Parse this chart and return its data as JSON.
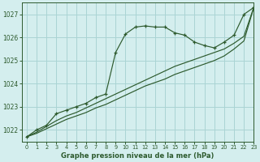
{
  "title": "Graphe pression niveau de la mer (hPa)",
  "background_color": "#d4eeee",
  "grid_color": "#aad4d4",
  "line_color": "#2d5a2d",
  "xlim": [
    -0.5,
    23
  ],
  "ylim": [
    1021.5,
    1027.5
  ],
  "yticks": [
    1022,
    1023,
    1024,
    1025,
    1026,
    1027
  ],
  "xticks": [
    0,
    1,
    2,
    3,
    4,
    5,
    6,
    7,
    8,
    9,
    10,
    11,
    12,
    13,
    14,
    15,
    16,
    17,
    18,
    19,
    20,
    21,
    22,
    23
  ],
  "series1_x": [
    0,
    1,
    2,
    3,
    4,
    5,
    6,
    7,
    8,
    9,
    10,
    11,
    12,
    13,
    14,
    15,
    16,
    17,
    18,
    19,
    20,
    21,
    22,
    23
  ],
  "series1_y": [
    1021.7,
    1022.0,
    1022.2,
    1022.7,
    1022.85,
    1023.0,
    1023.15,
    1023.4,
    1023.55,
    1025.35,
    1026.15,
    1026.45,
    1026.5,
    1026.45,
    1026.45,
    1026.2,
    1026.1,
    1025.8,
    1025.65,
    1025.55,
    1025.8,
    1026.1,
    1027.0,
    1027.3
  ],
  "series2_x": [
    0,
    1,
    2,
    3,
    4,
    5,
    6,
    7,
    8,
    9,
    10,
    11,
    12,
    13,
    14,
    15,
    16,
    17,
    18,
    19,
    20,
    21,
    22,
    23
  ],
  "series2_y": [
    1021.7,
    1021.85,
    1022.05,
    1022.25,
    1022.45,
    1022.6,
    1022.75,
    1022.95,
    1023.1,
    1023.3,
    1023.5,
    1023.7,
    1023.9,
    1024.05,
    1024.2,
    1024.4,
    1024.55,
    1024.7,
    1024.85,
    1025.0,
    1025.2,
    1025.5,
    1025.85,
    1027.3
  ],
  "series3_x": [
    0,
    1,
    2,
    3,
    4,
    5,
    6,
    7,
    8,
    9,
    10,
    11,
    12,
    13,
    14,
    15,
    16,
    17,
    18,
    19,
    20,
    21,
    22,
    23
  ],
  "series3_y": [
    1021.7,
    1021.9,
    1022.15,
    1022.4,
    1022.6,
    1022.75,
    1022.95,
    1023.15,
    1023.35,
    1023.55,
    1023.75,
    1023.95,
    1024.15,
    1024.35,
    1024.55,
    1024.75,
    1024.9,
    1025.05,
    1025.2,
    1025.35,
    1025.5,
    1025.75,
    1026.05,
    1027.3
  ]
}
